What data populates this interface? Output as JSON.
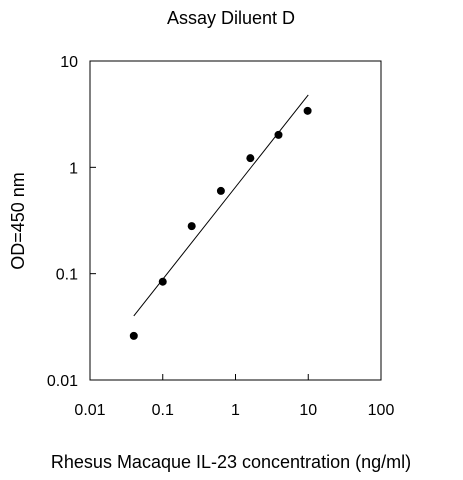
{
  "chart_data": {
    "type": "scatter",
    "title": "Assay Diluent D",
    "xlabel": "Rhesus Macaque IL-23 concentration (ng/ml)",
    "ylabel": "OD=450 nm",
    "x_scale": "log",
    "y_scale": "log",
    "xlim": [
      0.01,
      100
    ],
    "ylim": [
      0.01,
      10
    ],
    "x_ticks": [
      0.01,
      0.1,
      1,
      10,
      100
    ],
    "x_tick_labels": [
      "0.01",
      "0.1",
      "1",
      "10",
      "100"
    ],
    "y_ticks": [
      0.01,
      0.1,
      1,
      10
    ],
    "y_tick_labels": [
      "0.01",
      "0.1",
      "1",
      "10"
    ],
    "grid": false,
    "legend": "none",
    "series": [
      {
        "points": [
          {
            "x": 0.04,
            "y": 0.026
          },
          {
            "x": 0.1,
            "y": 0.084
          },
          {
            "x": 0.25,
            "y": 0.28
          },
          {
            "x": 0.63,
            "y": 0.6
          },
          {
            "x": 1.6,
            "y": 1.22
          },
          {
            "x": 3.9,
            "y": 2.02
          },
          {
            "x": 9.8,
            "y": 3.4
          }
        ]
      }
    ],
    "trendline": {
      "from": {
        "x": 0.04,
        "y": 0.04
      },
      "to": {
        "x": 10,
        "y": 4.8
      }
    }
  }
}
